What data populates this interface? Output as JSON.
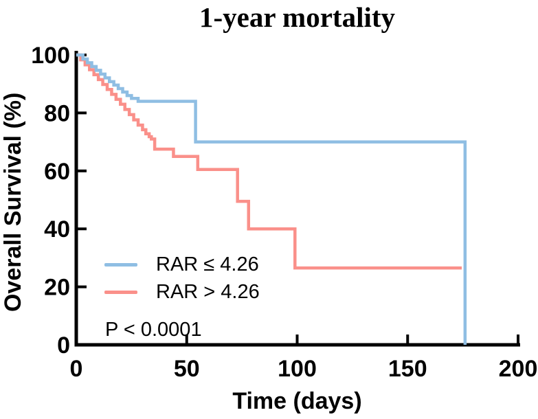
{
  "chart_data": {
    "type": "line",
    "subtype": "kaplan-meier-step",
    "title": "1-year mortality",
    "xlabel": "Time (days)",
    "ylabel": "Overall Survival (%)",
    "xlim": [
      0,
      200
    ],
    "ylim": [
      0,
      100
    ],
    "xticks": [
      0,
      50,
      100,
      150,
      200
    ],
    "yticks": [
      0,
      20,
      40,
      60,
      80,
      100
    ],
    "grid": false,
    "legend_position": "inside-lower-left",
    "annotation": "P < 0.0001",
    "axis_color": "#000000",
    "series": [
      {
        "name": "RAR ≤ 4.26",
        "color": "#8FBEE3",
        "points": [
          [
            0,
            100
          ],
          [
            3,
            98.6
          ],
          [
            5,
            97.3
          ],
          [
            7,
            96.0
          ],
          [
            9,
            94.7
          ],
          [
            11,
            93.4
          ],
          [
            13,
            92.1
          ],
          [
            15,
            90.8
          ],
          [
            17,
            89.6
          ],
          [
            19,
            88.4
          ],
          [
            21,
            87.2
          ],
          [
            23,
            86.0
          ],
          [
            25,
            85.0
          ],
          [
            28,
            84.0
          ],
          [
            54,
            70.0
          ],
          [
            176,
            0
          ]
        ],
        "end_day": 176
      },
      {
        "name": "RAR > 4.26",
        "color": "#FA908A",
        "points": [
          [
            0,
            100
          ],
          [
            2,
            98.3
          ],
          [
            4,
            96.6
          ],
          [
            6,
            94.9
          ],
          [
            8,
            93.2
          ],
          [
            10,
            91.5
          ],
          [
            12,
            89.8
          ],
          [
            14,
            88.1
          ],
          [
            16,
            86.4
          ],
          [
            18,
            84.7
          ],
          [
            20,
            83.0
          ],
          [
            22,
            81.2
          ],
          [
            24,
            79.4
          ],
          [
            26,
            77.6
          ],
          [
            28,
            75.8
          ],
          [
            30,
            74.2
          ],
          [
            31.5,
            72.8
          ],
          [
            33,
            71.8
          ],
          [
            34,
            71.0
          ],
          [
            35.5,
            67.5
          ],
          [
            44,
            65.0
          ],
          [
            55,
            60.5
          ],
          [
            73,
            49.5
          ],
          [
            78,
            40.0
          ],
          [
            99,
            26.5
          ]
        ],
        "end_day": 174.5
      }
    ]
  }
}
